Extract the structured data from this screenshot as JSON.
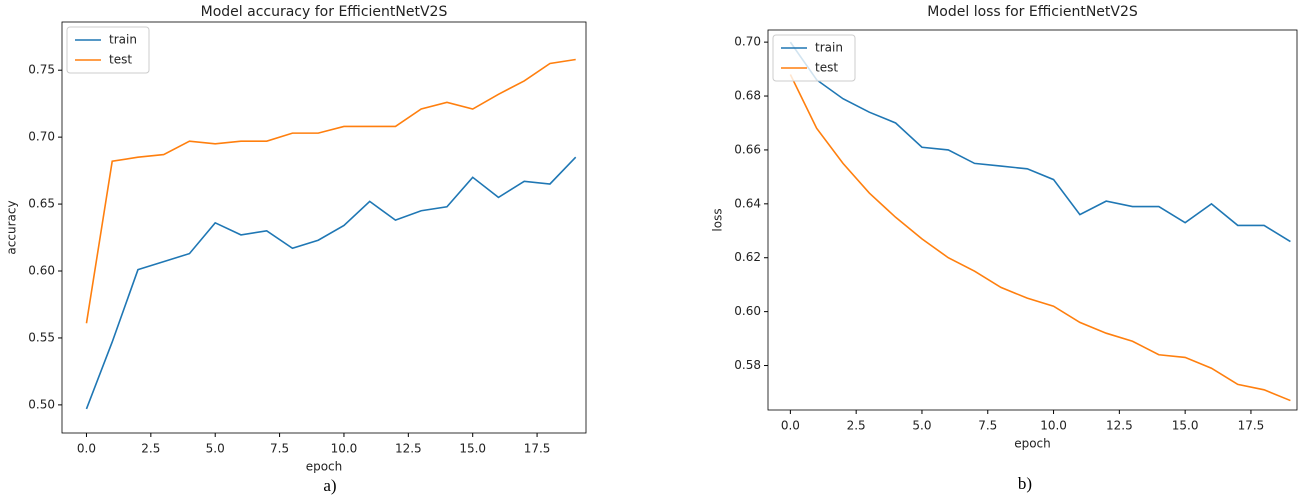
{
  "chart_data": [
    {
      "type": "line",
      "title": "Model accuracy for EfficientNetV2S",
      "xlabel": "epoch",
      "ylabel": "accuracy",
      "caption": "a)",
      "x": [
        0,
        1,
        2,
        3,
        4,
        5,
        6,
        7,
        8,
        9,
        10,
        11,
        12,
        13,
        14,
        15,
        16,
        17,
        18,
        19
      ],
      "series": [
        {
          "name": "train",
          "color": "#1f77b4",
          "values": [
            0.497,
            0.547,
            0.601,
            0.607,
            0.613,
            0.636,
            0.627,
            0.63,
            0.617,
            0.623,
            0.634,
            0.652,
            0.638,
            0.645,
            0.648,
            0.67,
            0.655,
            0.667,
            0.665,
            0.685
          ]
        },
        {
          "name": "test",
          "color": "#ff7f0e",
          "values": [
            0.561,
            0.682,
            0.685,
            0.687,
            0.697,
            0.695,
            0.697,
            0.697,
            0.703,
            0.703,
            0.708,
            0.708,
            0.708,
            0.721,
            0.726,
            0.721,
            0.732,
            0.742,
            0.755,
            0.758
          ]
        }
      ],
      "xlim": [
        -0.95,
        19.4
      ],
      "ylim": [
        0.479,
        0.786
      ],
      "xticks": [
        {
          "value": 0,
          "label": "0.0"
        },
        2.5,
        {
          "value": 5,
          "label": "5.0"
        },
        7.5,
        {
          "value": 10,
          "label": "10.0"
        },
        12.5,
        {
          "value": 15,
          "label": "15.0"
        },
        17.5
      ],
      "yticks": [
        {
          "value": 0.5,
          "label": "0.50"
        },
        0.55,
        {
          "value": 0.6,
          "label": "0.60"
        },
        0.65,
        {
          "value": 0.7,
          "label": "0.70"
        },
        0.75
      ],
      "legend": "upper left"
    },
    {
      "type": "line",
      "title": "Model loss for EfficientNetV2S",
      "xlabel": "epoch",
      "ylabel": "loss",
      "caption": "b)",
      "x": [
        0,
        1,
        2,
        3,
        4,
        5,
        6,
        7,
        8,
        9,
        10,
        11,
        12,
        13,
        14,
        15,
        16,
        17,
        18,
        19
      ],
      "series": [
        {
          "name": "train",
          "color": "#1f77b4",
          "values": [
            0.7,
            0.686,
            0.679,
            0.674,
            0.67,
            0.661,
            0.66,
            0.655,
            0.654,
            0.653,
            0.649,
            0.636,
            0.641,
            0.639,
            0.639,
            0.633,
            0.64,
            0.632,
            0.632,
            0.626
          ]
        },
        {
          "name": "test",
          "color": "#ff7f0e",
          "values": [
            0.688,
            0.668,
            0.655,
            0.644,
            0.635,
            0.627,
            0.62,
            0.615,
            0.609,
            0.605,
            0.602,
            0.596,
            0.592,
            0.589,
            0.584,
            0.583,
            0.579,
            0.573,
            0.571,
            0.567
          ]
        }
      ],
      "xlim": [
        -0.85,
        19.25
      ],
      "ylim": [
        0.5635,
        0.7045
      ],
      "xticks": [
        {
          "value": 0,
          "label": "0.0"
        },
        2.5,
        {
          "value": 5,
          "label": "5.0"
        },
        7.5,
        {
          "value": 10,
          "label": "10.0"
        },
        12.5,
        {
          "value": 15,
          "label": "15.0"
        },
        17.5
      ],
      "yticks": [
        0.58,
        {
          "value": 0.6,
          "label": "0.60"
        },
        0.62,
        0.64,
        0.66,
        0.68,
        {
          "value": 0.7,
          "label": "0.70"
        }
      ],
      "legend": "upper left"
    }
  ]
}
